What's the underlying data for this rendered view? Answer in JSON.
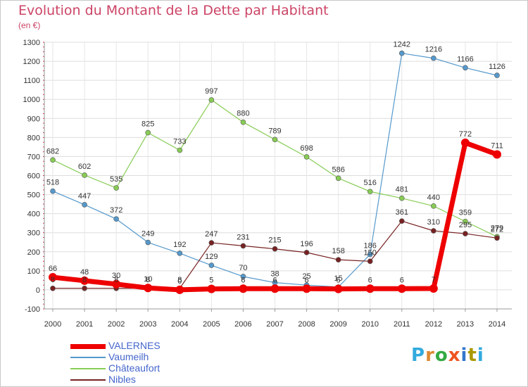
{
  "title": "Evolution du Montant de la Dette par Habitant",
  "subtitle": "(en €)",
  "logo": {
    "text": "Proxiti",
    "colors": [
      "#33aadd",
      "#dd8833",
      "#33aa44",
      "#ee5522",
      "#3377cc",
      "#aa9900",
      "#33aadd"
    ]
  },
  "chart_data": {
    "type": "line",
    "x": [
      "2000",
      "2001",
      "2002",
      "2003",
      "2004",
      "2005",
      "2006",
      "2007",
      "2008",
      "2009",
      "2010",
      "2011",
      "2012",
      "2013",
      "2014"
    ],
    "ylim": [
      -100,
      1300
    ],
    "yticks": [
      -100,
      0,
      100,
      200,
      300,
      400,
      500,
      600,
      700,
      800,
      900,
      1000,
      1100,
      1200,
      1300
    ],
    "grid": true,
    "legend_position": "bottom-left",
    "series": [
      {
        "name": "VALERNES",
        "color": "#ee0000",
        "width": 7,
        "values": [
          66,
          48,
          30,
          10,
          0,
          5,
          6,
          6,
          6,
          5,
          6,
          6,
          7,
          772,
          711
        ]
      },
      {
        "name": "Vaumeilh",
        "color": "#5599cc",
        "width": 1.2,
        "values": [
          518,
          447,
          372,
          249,
          192,
          129,
          70,
          38,
          25,
          15,
          186,
          1242,
          1216,
          1166,
          1126
        ]
      },
      {
        "name": "Châteaufort",
        "color": "#88cc55",
        "width": 1.2,
        "values": [
          682,
          602,
          535,
          825,
          733,
          997,
          880,
          789,
          698,
          586,
          516,
          481,
          440,
          359,
          279
        ]
      },
      {
        "name": "Nibles",
        "color": "#772222",
        "width": 1.2,
        "values": [
          8,
          8,
          8,
          8,
          8,
          247,
          231,
          215,
          196,
          158,
          150,
          361,
          310,
          295,
          272
        ]
      }
    ]
  }
}
